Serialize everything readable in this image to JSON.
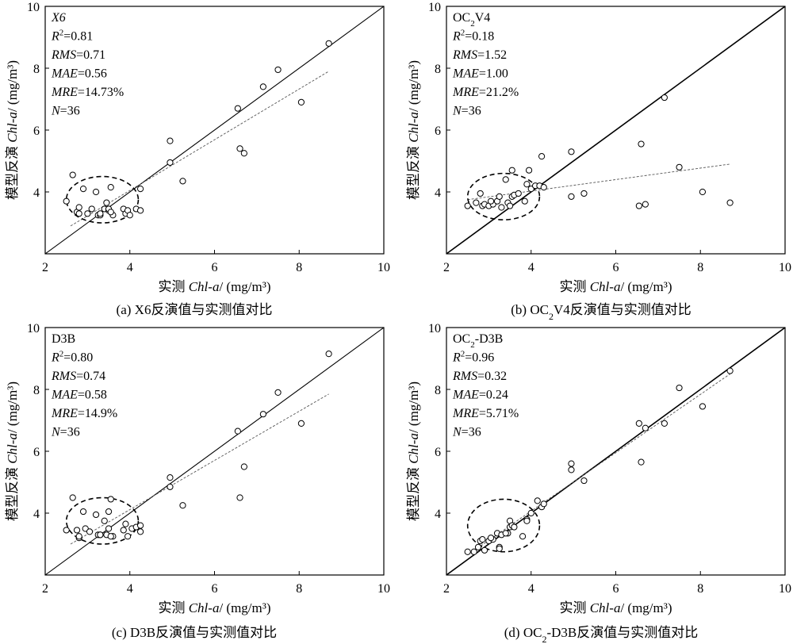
{
  "chart_data": [
    {
      "type": "scatter",
      "panel": "a",
      "xlabel": {
        "prefix": "实测 ",
        "var": "Chl-a",
        "suffix": "/ (mg/m³)"
      },
      "ylabel": {
        "prefix": "模型反演 ",
        "var": "Chl-a",
        "suffix": "/ (mg/m³)"
      },
      "xlim": [
        2,
        10
      ],
      "ylim": [
        2,
        10
      ],
      "xticks": [
        "2",
        "4",
        "6",
        "8",
        "10"
      ],
      "yticks": [
        "4",
        "6",
        "8",
        "10"
      ],
      "annotations": [
        {
          "italic": "X6",
          "rest": ""
        },
        {
          "italic": "R",
          "sup": "2",
          "rest": "=0.81"
        },
        {
          "italic": "RMS",
          "rest": "=0.71"
        },
        {
          "italic": "MAE",
          "rest": "=0.56"
        },
        {
          "italic": "MRE",
          "rest": "=14.73%"
        },
        {
          "italic": "N",
          "rest": "=36"
        }
      ],
      "caption": {
        "before": "(a) X6反演值与实测值对比",
        "sub": "",
        "after": ""
      },
      "one_to_one_line": true,
      "fit_line": {
        "x": [
          2.6,
          8.7
        ],
        "y": [
          2.9,
          7.9
        ]
      },
      "ellipse": {
        "cx": 3.35,
        "cy": 3.75,
        "rx": 0.85,
        "ry": 0.75
      },
      "points": [
        [
          2.5,
          3.7
        ],
        [
          2.65,
          4.55
        ],
        [
          2.75,
          3.35
        ],
        [
          2.8,
          3.3
        ],
        [
          2.8,
          3.5
        ],
        [
          2.9,
          4.1
        ],
        [
          3.0,
          3.3
        ],
        [
          3.1,
          3.45
        ],
        [
          3.2,
          4.0
        ],
        [
          3.25,
          3.25
        ],
        [
          3.3,
          3.25
        ],
        [
          3.4,
          3.45
        ],
        [
          3.45,
          3.65
        ],
        [
          3.5,
          3.4
        ],
        [
          3.5,
          3.45
        ],
        [
          3.55,
          4.15
        ],
        [
          3.6,
          3.25
        ],
        [
          3.85,
          3.45
        ],
        [
          3.9,
          3.3
        ],
        [
          3.95,
          3.4
        ],
        [
          4.0,
          3.25
        ],
        [
          4.15,
          3.45
        ],
        [
          4.25,
          3.4
        ],
        [
          4.25,
          4.1
        ],
        [
          4.95,
          5.65
        ],
        [
          4.95,
          4.95
        ],
        [
          5.25,
          4.35
        ],
        [
          6.55,
          6.7
        ],
        [
          6.6,
          5.4
        ],
        [
          6.7,
          5.25
        ],
        [
          7.15,
          7.4
        ],
        [
          7.5,
          7.95
        ],
        [
          8.05,
          6.9
        ],
        [
          8.7,
          8.8
        ],
        [
          3.3,
          3.3
        ],
        [
          3.55,
          3.35
        ]
      ]
    },
    {
      "type": "scatter",
      "panel": "b",
      "xlabel": {
        "prefix": "实测 ",
        "var": "Chl-a",
        "suffix": "/ (mg/m³)"
      },
      "ylabel": {
        "prefix": "模型反演 ",
        "var": "Chl-a",
        "suffix": "/ (mg/m³)"
      },
      "xlim": [
        2,
        10
      ],
      "ylim": [
        2,
        10
      ],
      "xticks": [
        "2",
        "4",
        "6",
        "8",
        "10"
      ],
      "yticks": [
        "4",
        "6",
        "8",
        "10"
      ],
      "annotations": [
        {
          "italic": "",
          "rest": "OC",
          "sub": "2",
          "rest2": "V4"
        },
        {
          "italic": "R",
          "sup": "2",
          "rest": "=0.18"
        },
        {
          "italic": "RMS",
          "rest": "=1.52"
        },
        {
          "italic": "MAE",
          "rest": "=1.00"
        },
        {
          "italic": "MRE",
          "rest": "=21.2%"
        },
        {
          "italic": "N",
          "rest": "=36"
        }
      ],
      "caption": {
        "before": "(b) OC",
        "sub": "2",
        "after": "V4反演值与实测值对比"
      },
      "one_to_one_line": true,
      "fit_line": {
        "x": [
          2.5,
          8.7
        ],
        "y": [
          3.75,
          4.9
        ]
      },
      "ellipse": {
        "cx": 3.35,
        "cy": 3.85,
        "rx": 0.85,
        "ry": 0.75
      },
      "points": [
        [
          2.5,
          3.55
        ],
        [
          2.7,
          3.65
        ],
        [
          2.8,
          3.95
        ],
        [
          2.85,
          3.55
        ],
        [
          2.9,
          3.6
        ],
        [
          3.0,
          3.55
        ],
        [
          3.1,
          3.6
        ],
        [
          3.2,
          3.7
        ],
        [
          3.25,
          3.85
        ],
        [
          3.3,
          3.5
        ],
        [
          3.4,
          4.4
        ],
        [
          3.45,
          3.65
        ],
        [
          3.5,
          3.55
        ],
        [
          3.55,
          3.85
        ],
        [
          3.55,
          4.7
        ],
        [
          3.6,
          3.9
        ],
        [
          3.85,
          3.7
        ],
        [
          3.9,
          4.25
        ],
        [
          3.95,
          4.7
        ],
        [
          4.0,
          4.1
        ],
        [
          4.1,
          4.2
        ],
        [
          4.2,
          4.2
        ],
        [
          4.25,
          5.15
        ],
        [
          4.3,
          4.15
        ],
        [
          4.95,
          5.3
        ],
        [
          4.95,
          3.85
        ],
        [
          5.25,
          3.95
        ],
        [
          6.55,
          3.55
        ],
        [
          6.6,
          5.55
        ],
        [
          6.7,
          3.6
        ],
        [
          7.15,
          7.05
        ],
        [
          7.5,
          4.8
        ],
        [
          8.05,
          4.0
        ],
        [
          8.7,
          3.65
        ],
        [
          3.05,
          3.7
        ],
        [
          3.7,
          3.95
        ]
      ]
    },
    {
      "type": "scatter",
      "panel": "c",
      "xlabel": {
        "prefix": "实测 ",
        "var": "Chl-a",
        "suffix": "/ (mg/m³)"
      },
      "ylabel": {
        "prefix": "模型反演 ",
        "var": "Chl-a",
        "suffix": "/ (mg/m³)"
      },
      "xlim": [
        2,
        10
      ],
      "ylim": [
        2,
        10
      ],
      "xticks": [
        "2",
        "4",
        "6",
        "8",
        "10"
      ],
      "yticks": [
        "4",
        "6",
        "8",
        "10"
      ],
      "annotations": [
        {
          "italic": "",
          "rest": "D3B"
        },
        {
          "italic": "R",
          "sup": "2",
          "rest": "=0.80"
        },
        {
          "italic": "RMS",
          "rest": "=0.74"
        },
        {
          "italic": "MAE",
          "rest": "=0.58"
        },
        {
          "italic": "MRE",
          "rest": "=14.9%"
        },
        {
          "italic": "N",
          "rest": "=36"
        }
      ],
      "caption": {
        "before": "(c) D3B反演值与实测值对比",
        "sub": "",
        "after": ""
      },
      "one_to_one_line": true,
      "fit_line": {
        "x": [
          2.6,
          8.7
        ],
        "y": [
          3.0,
          7.85
        ]
      },
      "ellipse": {
        "cx": 3.35,
        "cy": 3.75,
        "rx": 0.85,
        "ry": 0.75
      },
      "points": [
        [
          2.5,
          3.45
        ],
        [
          2.65,
          4.5
        ],
        [
          2.75,
          3.45
        ],
        [
          2.8,
          3.2
        ],
        [
          2.8,
          3.25
        ],
        [
          2.9,
          4.05
        ],
        [
          2.95,
          3.5
        ],
        [
          3.05,
          3.4
        ],
        [
          3.2,
          3.95
        ],
        [
          3.25,
          3.3
        ],
        [
          3.3,
          3.3
        ],
        [
          3.4,
          3.75
        ],
        [
          3.45,
          3.3
        ],
        [
          3.5,
          3.5
        ],
        [
          3.5,
          4.05
        ],
        [
          3.55,
          4.45
        ],
        [
          3.6,
          3.25
        ],
        [
          3.85,
          3.45
        ],
        [
          3.9,
          3.65
        ],
        [
          3.95,
          3.25
        ],
        [
          4.05,
          3.5
        ],
        [
          4.15,
          3.55
        ],
        [
          4.25,
          3.6
        ],
        [
          4.25,
          3.4
        ],
        [
          4.95,
          5.15
        ],
        [
          4.95,
          4.85
        ],
        [
          5.25,
          4.25
        ],
        [
          6.55,
          6.65
        ],
        [
          6.6,
          4.5
        ],
        [
          6.7,
          5.5
        ],
        [
          7.15,
          7.2
        ],
        [
          7.5,
          7.9
        ],
        [
          8.05,
          6.9
        ],
        [
          8.7,
          9.15
        ],
        [
          3.3,
          3.3
        ],
        [
          3.55,
          3.25
        ]
      ]
    },
    {
      "type": "scatter",
      "panel": "d",
      "xlabel": {
        "prefix": "实测 ",
        "var": "Chl-a",
        "suffix": "/ (mg/m³)"
      },
      "ylabel": {
        "prefix": "模型反演 ",
        "var": "Chl-a",
        "suffix": "/ (mg/m³)"
      },
      "xlim": [
        2,
        10
      ],
      "ylim": [
        2,
        10
      ],
      "xticks": [
        "2",
        "4",
        "6",
        "8",
        "10"
      ],
      "yticks": [
        "4",
        "6",
        "8",
        "10"
      ],
      "annotations": [
        {
          "italic": "",
          "rest": "OC",
          "sub": "2",
          "rest2": "-D3B"
        },
        {
          "italic": "R",
          "sup": "2",
          "rest": "=0.96"
        },
        {
          "italic": "RMS",
          "rest": "=0.32"
        },
        {
          "italic": "MAE",
          "rest": "=0.24"
        },
        {
          "italic": "MRE",
          "rest": "=5.71%"
        },
        {
          "italic": "N",
          "rest": "=36"
        }
      ],
      "caption": {
        "before": "(d) OC",
        "sub": "2",
        "after": "-D3B反演值与实测值对比"
      },
      "one_to_one_line": true,
      "fit_line": {
        "x": [
          2.5,
          8.7
        ],
        "y": [
          2.65,
          8.5
        ]
      },
      "ellipse": {
        "cx": 3.35,
        "cy": 3.6,
        "rx": 0.85,
        "ry": 0.85
      },
      "points": [
        [
          2.5,
          2.75
        ],
        [
          2.65,
          2.75
        ],
        [
          2.75,
          2.9
        ],
        [
          2.8,
          3.1
        ],
        [
          2.85,
          3.15
        ],
        [
          2.9,
          2.8
        ],
        [
          3.0,
          3.1
        ],
        [
          3.1,
          3.15
        ],
        [
          3.2,
          3.35
        ],
        [
          3.25,
          2.9
        ],
        [
          3.25,
          2.85
        ],
        [
          3.3,
          3.3
        ],
        [
          3.45,
          3.35
        ],
        [
          3.5,
          3.75
        ],
        [
          3.5,
          3.55
        ],
        [
          3.55,
          3.6
        ],
        [
          3.6,
          3.55
        ],
        [
          3.8,
          3.25
        ],
        [
          3.9,
          3.8
        ],
        [
          3.9,
          3.75
        ],
        [
          4.0,
          4.0
        ],
        [
          4.15,
          4.4
        ],
        [
          4.25,
          4.2
        ],
        [
          4.3,
          4.3
        ],
        [
          4.95,
          5.6
        ],
        [
          4.95,
          5.4
        ],
        [
          5.25,
          5.05
        ],
        [
          6.55,
          6.9
        ],
        [
          6.6,
          5.65
        ],
        [
          6.7,
          6.75
        ],
        [
          7.15,
          6.9
        ],
        [
          7.5,
          8.05
        ],
        [
          8.05,
          7.45
        ],
        [
          8.7,
          8.6
        ],
        [
          3.05,
          3.2
        ],
        [
          3.4,
          3.35
        ]
      ]
    }
  ]
}
